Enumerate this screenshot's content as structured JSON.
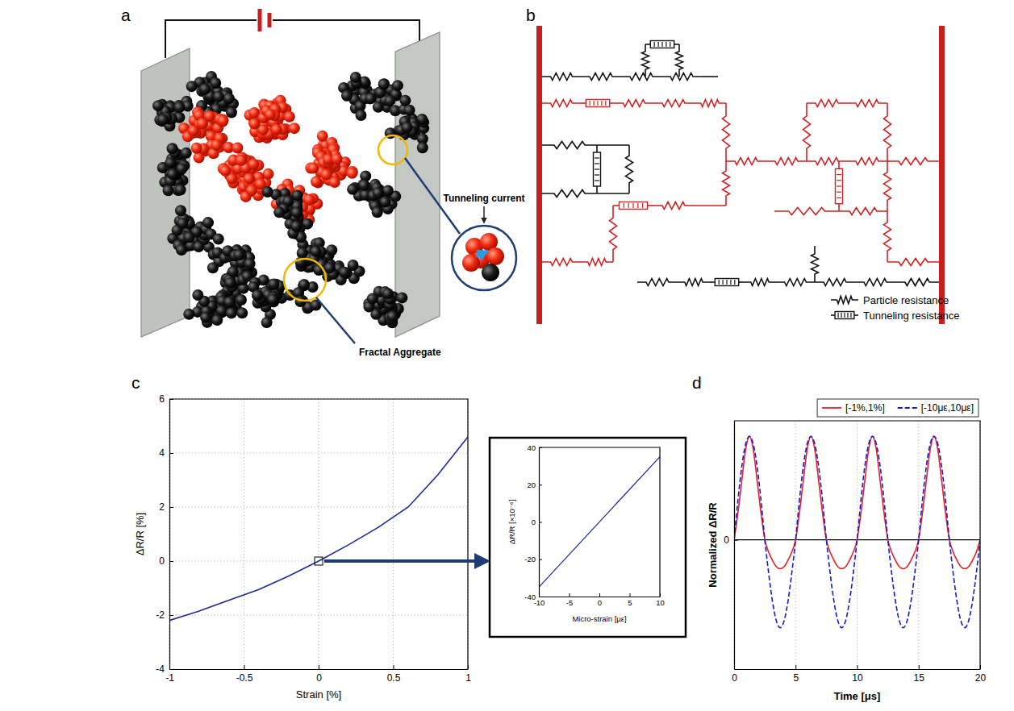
{
  "panels": {
    "a": {
      "letter": "a",
      "tunneling_label": "Tunneling current",
      "aggregate_label": "Fractal Aggregate"
    },
    "b": {
      "letter": "b",
      "legend_particle": "Particle resistance",
      "legend_tunneling": "Tunneling resistance"
    }
  },
  "chart_data": [
    {
      "type": "line",
      "panel": "c",
      "xlabel": "Strain [%]",
      "ylabel": "ΔR/R [%]",
      "x": [
        -1,
        -0.8,
        -0.6,
        -0.4,
        -0.2,
        0,
        0.2,
        0.4,
        0.6,
        0.8,
        1
      ],
      "values": [
        -2.2,
        -1.85,
        -1.45,
        -1.05,
        -0.55,
        0,
        0.6,
        1.25,
        2,
        3.2,
        4.6
      ],
      "color": "#1c2a94",
      "xlim": [
        -1,
        1
      ],
      "ylim": [
        -4,
        6
      ],
      "xticks": [
        -1,
        -0.5,
        0,
        0.5,
        1
      ],
      "yticks": [
        -4,
        -2,
        0,
        2,
        4,
        6
      ],
      "grid": true
    },
    {
      "type": "line",
      "xlabel": "Micro-strain [με]",
      "ylabel": "ΔR/R [×10⁻⁶]",
      "x": [
        -10,
        10
      ],
      "values": [
        -35,
        35
      ],
      "color": "#1c2a94",
      "xlim": [
        -10,
        10
      ],
      "ylim": [
        -40,
        40
      ],
      "xticks": [
        -10,
        -5,
        0,
        5,
        10
      ],
      "yticks": [
        -40,
        -20,
        0,
        20,
        40
      ],
      "grid": false
    },
    {
      "type": "line",
      "panel": "d",
      "xlabel": "Time [μs]",
      "ylabel": "Normalized ΔR/R",
      "x": [
        0,
        0.3125,
        0.625,
        0.9375,
        1.25,
        1.5625,
        1.875,
        2.1875,
        2.5,
        2.8125,
        3.125,
        3.4375,
        3.75,
        4.0625,
        4.375,
        4.6875,
        5,
        5.3125,
        5.625,
        5.9375,
        6.25,
        6.5625,
        6.875,
        7.1875,
        7.5,
        7.8125,
        8.125,
        8.4375,
        8.75,
        9.0625,
        9.375,
        9.6875,
        10,
        10.3125,
        10.625,
        10.9375,
        11.25,
        11.5625,
        11.875,
        12.1875,
        12.5,
        12.8125,
        13.125,
        13.4375,
        13.75,
        14.0625,
        14.375,
        14.6875,
        15,
        15.3125,
        15.625,
        15.9375,
        16.25,
        16.5625,
        16.875,
        17.1875,
        17.5,
        17.8125,
        18.125,
        18.4375,
        18.75,
        19.0625,
        19.375,
        19.6875,
        20
      ],
      "series": [
        {
          "name": "[-1%,1%]",
          "color": "#e8202a",
          "line_style": "solid",
          "values": [
            0,
            0.26,
            0.57,
            0.87,
            1,
            0.87,
            0.57,
            0.26,
            0,
            -0.12,
            -0.2,
            -0.26,
            -0.28,
            -0.26,
            -0.2,
            -0.12,
            0,
            0.26,
            0.57,
            0.87,
            1,
            0.87,
            0.57,
            0.26,
            0,
            -0.12,
            -0.2,
            -0.26,
            -0.28,
            -0.26,
            -0.2,
            -0.12,
            0,
            0.26,
            0.57,
            0.87,
            1,
            0.87,
            0.57,
            0.26,
            0,
            -0.12,
            -0.2,
            -0.26,
            -0.28,
            -0.26,
            -0.2,
            -0.12,
            0,
            0.26,
            0.57,
            0.87,
            1,
            0.87,
            0.57,
            0.26,
            0,
            -0.12,
            -0.2,
            -0.26,
            -0.28,
            -0.26,
            -0.2,
            -0.12,
            0
          ]
        },
        {
          "name": "[-10με,10με]",
          "color": "#1a1acc",
          "line_style": "dashed",
          "values": [
            0,
            0.383,
            0.707,
            0.924,
            1,
            0.924,
            0.707,
            0.383,
            0,
            -0.325,
            -0.6,
            -0.785,
            -0.85,
            -0.785,
            -0.6,
            -0.325,
            0,
            0.383,
            0.707,
            0.924,
            1,
            0.924,
            0.707,
            0.383,
            0,
            -0.325,
            -0.6,
            -0.785,
            -0.85,
            -0.785,
            -0.6,
            -0.325,
            0,
            0.383,
            0.707,
            0.924,
            1,
            0.924,
            0.707,
            0.383,
            0,
            -0.325,
            -0.6,
            -0.785,
            -0.85,
            -0.785,
            -0.6,
            -0.325,
            0,
            0.383,
            0.707,
            0.924,
            1,
            0.924,
            0.707,
            0.383,
            0,
            -0.325,
            -0.6,
            -0.785,
            -0.85,
            -0.785,
            -0.6,
            -0.325,
            0
          ]
        }
      ],
      "xlim": [
        0,
        20
      ],
      "ylim": [
        -1.25,
        1.15
      ],
      "xticks": [
        0,
        5,
        10,
        15,
        20
      ],
      "yticks": [
        0
      ],
      "grid": true,
      "legend": "top"
    }
  ]
}
